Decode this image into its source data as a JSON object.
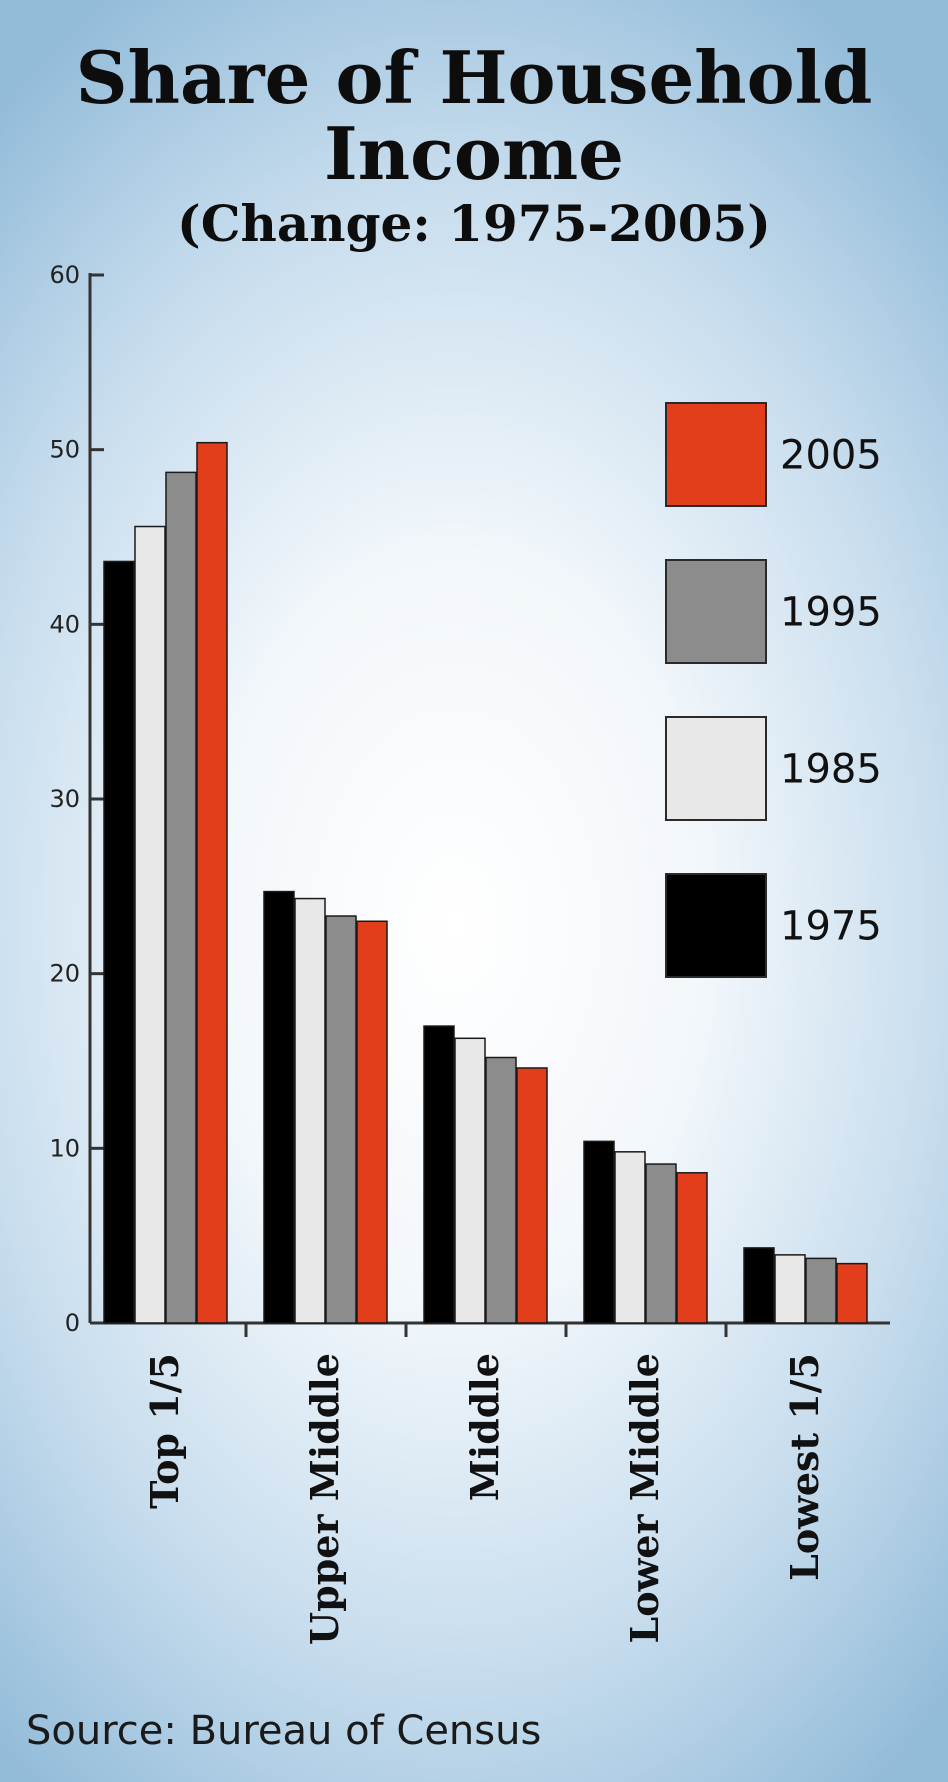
{
  "chart_data": {
    "type": "bar",
    "title": "Share of Household Income",
    "title_lines": [
      "Share of Household",
      "Income"
    ],
    "subtitle": "(Change: 1975-2005)",
    "categories": [
      "Top 1/5",
      "Upper Middle",
      "Middle",
      "Lower Middle",
      "Lowest 1/5"
    ],
    "series": [
      {
        "name": "1975",
        "color": "#000000",
        "values": [
          43.6,
          24.7,
          17.0,
          10.4,
          4.3
        ]
      },
      {
        "name": "1985",
        "color": "#e8e8e8",
        "values": [
          45.6,
          24.3,
          16.3,
          9.8,
          3.9
        ]
      },
      {
        "name": "1995",
        "color": "#8c8c8c",
        "values": [
          48.7,
          23.3,
          15.2,
          9.1,
          3.7
        ]
      },
      {
        "name": "2005",
        "color": "#e23e1c",
        "values": [
          50.4,
          23.0,
          14.6,
          8.6,
          3.4
        ]
      }
    ],
    "legend_order": [
      "2005",
      "1995",
      "1985",
      "1975"
    ],
    "legend_position": "right",
    "ylim": [
      0,
      60
    ],
    "yticks": [
      0,
      10,
      20,
      30,
      40,
      50,
      60
    ],
    "xlabel": "",
    "ylabel": "",
    "grid": false
  },
  "source": "Source: Bureau of Census"
}
